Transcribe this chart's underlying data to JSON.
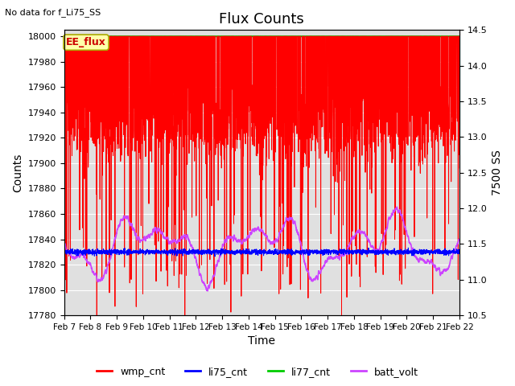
{
  "title": "Flux Counts",
  "title_note": "No data for f_Li75_SS",
  "xlabel": "Time",
  "ylabel_left": "Counts",
  "ylabel_right": "7500 SS",
  "ylim_left": [
    17780,
    18005
  ],
  "ylim_right": [
    10.5,
    14.5
  ],
  "yticks_left": [
    17780,
    17800,
    17820,
    17840,
    17860,
    17880,
    17900,
    17920,
    17940,
    17960,
    17980,
    18000
  ],
  "yticks_right": [
    10.5,
    11.0,
    11.5,
    12.0,
    12.5,
    13.0,
    13.5,
    14.0,
    14.5
  ],
  "xtick_labels": [
    "Feb 7",
    "Feb 8",
    "Feb 9",
    "Feb 10",
    "Feb 11",
    "Feb 12",
    "Feb 13",
    "Feb 14",
    "Feb 15",
    "Feb 16",
    "Feb 17",
    "Feb 18",
    "Feb 19",
    "Feb 20",
    "Feb 21",
    "Feb 22"
  ],
  "wmp_color": "#ff0000",
  "li75_color": "#0000ff",
  "li77_color": "#00cc00",
  "batt_color": "#cc44ff",
  "ee_flux_box_color": "#ffffaa",
  "ee_flux_text_color": "#cc0000",
  "background_color": "#e0e0e0",
  "grid_color": "#ffffff",
  "figsize": [
    6.4,
    4.8
  ],
  "dpi": 100
}
